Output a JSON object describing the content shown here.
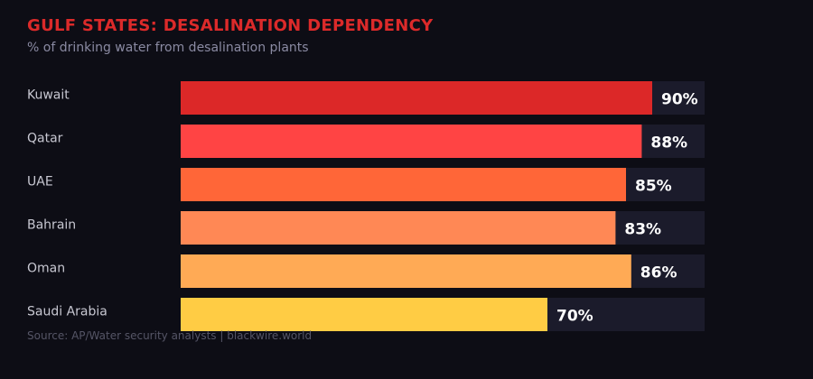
{
  "chart_data": {
    "type": "bar",
    "orientation": "horizontal",
    "title": "GULF STATES: DESALINATION DEPENDENCY",
    "subtitle": "% of drinking water from desalination plants",
    "source": "Source: AP/Water security analysts | blackwire.world",
    "categories": [
      "Kuwait",
      "Qatar",
      "UAE",
      "Bahrain",
      "Oman",
      "Saudi Arabia"
    ],
    "values": [
      90,
      88,
      85,
      83,
      86,
      70
    ],
    "value_labels": [
      "90%",
      "88%",
      "85%",
      "83%",
      "86%",
      "70%"
    ],
    "colors": [
      "#dc2828",
      "#ff4444",
      "#ff6638",
      "#ff8855",
      "#ffaa55",
      "#ffcc44"
    ],
    "xlim": [
      0,
      100
    ],
    "grid": false,
    "background": "#0d0d15",
    "track_color": "#1b1b2b"
  }
}
